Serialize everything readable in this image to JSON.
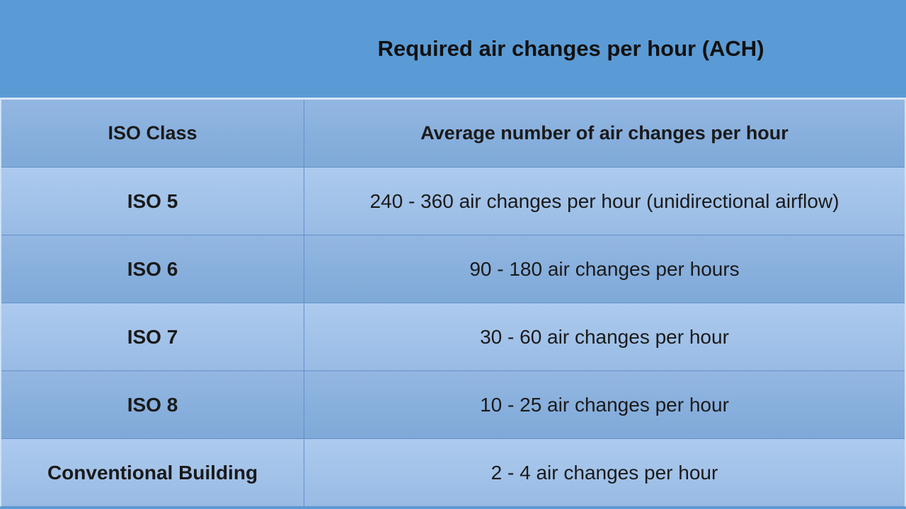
{
  "slide": {
    "title": "Required air changes per hour (ACH)",
    "colors": {
      "banner_background": "#5B9BD5",
      "row_light": "#A9C7EB",
      "row_dark": "#84ADDC",
      "grid_line": "#6390C9",
      "outer_border_light": "#D9E6F5",
      "text": "#1A1A1A"
    }
  },
  "table": {
    "header": {
      "col1": "ISO Class",
      "col2": "Average number of air changes per hour"
    },
    "rows": [
      {
        "label": "ISO 5",
        "value": "240 - 360 air changes per hour (unidirectional airflow)"
      },
      {
        "label": "ISO 6",
        "value": "90 - 180 air changes per hours"
      },
      {
        "label": "ISO 7",
        "value": "30 - 60 air changes per hour"
      },
      {
        "label": "ISO 8",
        "value": "10 - 25 air changes per hour"
      },
      {
        "label": "Conventional Building",
        "value": "2 - 4 air changes per hour"
      }
    ]
  },
  "chart_data": {
    "type": "table",
    "title": "Required air changes per hour (ACH)",
    "columns": [
      "ISO Class",
      "Average number of air changes per hour"
    ],
    "rows": [
      [
        "ISO 5",
        "240 - 360 air changes per hour (unidirectional airflow)"
      ],
      [
        "ISO 6",
        "90 - 180 air changes per hours"
      ],
      [
        "ISO 7",
        "30 - 60 air changes per hour"
      ],
      [
        "ISO 8",
        "10 - 25 air changes per hour"
      ],
      [
        "Conventional Building",
        "2 - 4 air changes per hour"
      ]
    ],
    "ach_numeric_ranges": [
      {
        "category": "ISO 5",
        "min": 240,
        "max": 360,
        "note": "unidirectional airflow"
      },
      {
        "category": "ISO 6",
        "min": 90,
        "max": 180
      },
      {
        "category": "ISO 7",
        "min": 30,
        "max": 60
      },
      {
        "category": "ISO 8",
        "min": 10,
        "max": 25
      },
      {
        "category": "Conventional Building",
        "min": 2,
        "max": 4
      }
    ]
  }
}
